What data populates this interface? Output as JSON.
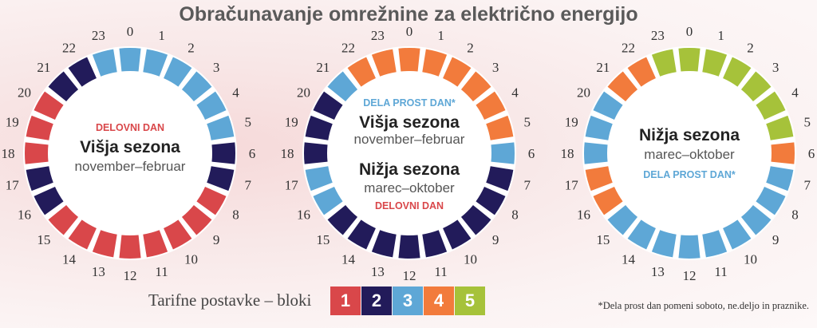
{
  "title": "Obračunavanje omrežnine za električno energijo",
  "colors": {
    "1": "#d9474a",
    "2": "#221b5a",
    "3": "#5ea7d6",
    "4": "#f27b3c",
    "5": "#a6c23a"
  },
  "clocks": [
    {
      "blocks": [
        3,
        3,
        3,
        3,
        3,
        3,
        2,
        2,
        1,
        1,
        1,
        1,
        1,
        1,
        1,
        1,
        2,
        2,
        1,
        1,
        1,
        2,
        2,
        3
      ],
      "labels": [
        {
          "text": "DELOVNI DAN",
          "color": "#d9474a",
          "size": "small"
        },
        {
          "text": "Višja sezona",
          "color": "#222222",
          "size": "big"
        },
        {
          "text": "november–februar",
          "color": "#555555",
          "size": "med"
        }
      ]
    },
    {
      "blocks": [
        4,
        4,
        4,
        4,
        4,
        4,
        3,
        2,
        2,
        2,
        2,
        2,
        2,
        2,
        2,
        2,
        3,
        3,
        2,
        2,
        2,
        3,
        4,
        4
      ],
      "labels": [
        {
          "text": "DELA PROST DAN*",
          "color": "#5ea7d6",
          "size": "small"
        },
        {
          "text": "Višja sezona",
          "color": "#222222",
          "size": "big"
        },
        {
          "text": "november–februar",
          "color": "#555555",
          "size": "med"
        },
        {
          "text": "Nižja sezona",
          "color": "#222222",
          "size": "big"
        },
        {
          "text": "marec–oktober",
          "color": "#555555",
          "size": "med"
        },
        {
          "text": "DELOVNI DAN",
          "color": "#d9474a",
          "size": "small"
        }
      ]
    },
    {
      "blocks": [
        5,
        5,
        5,
        5,
        5,
        5,
        4,
        3,
        3,
        3,
        3,
        3,
        3,
        3,
        3,
        3,
        4,
        4,
        3,
        3,
        3,
        4,
        4,
        5
      ],
      "labels": [
        {
          "text": "Nižja sezona",
          "color": "#222222",
          "size": "big"
        },
        {
          "text": "marec–oktober",
          "color": "#555555",
          "size": "med"
        },
        {
          "text": "DELA PROST DAN*",
          "color": "#5ea7d6",
          "size": "small"
        }
      ]
    }
  ],
  "legend": {
    "label": "Tarifne postavke – bloki",
    "blocks": [
      "1",
      "2",
      "3",
      "4",
      "5"
    ]
  },
  "footnote": "*Dela prost dan pomeni soboto, ne.deljo in praznike."
}
